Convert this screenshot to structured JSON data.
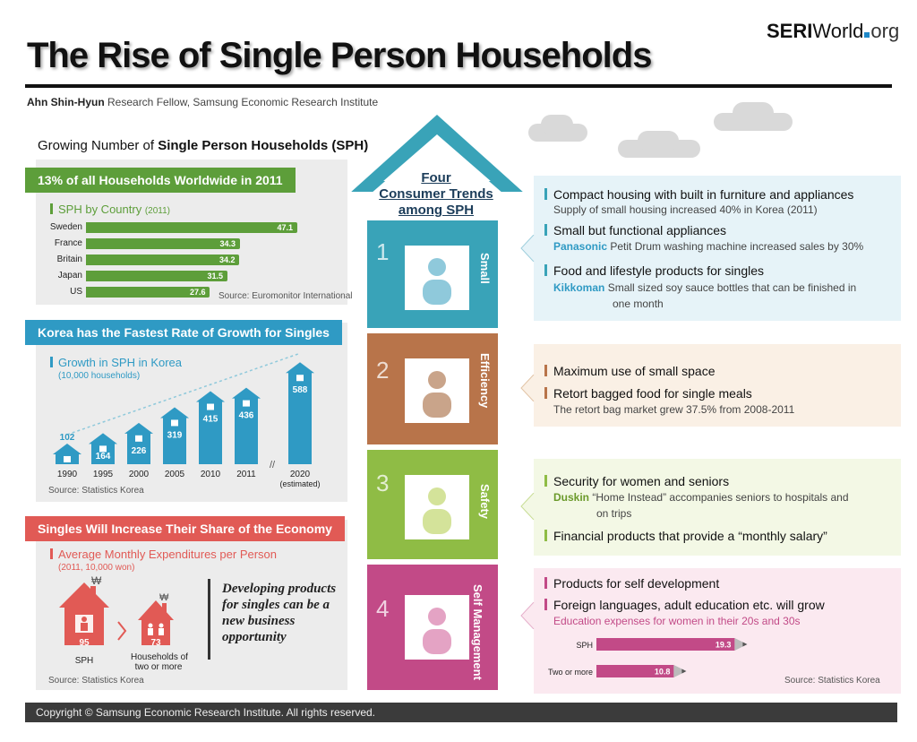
{
  "header": {
    "title": "The Rise of Single Person Households",
    "logo_bold": "SERI",
    "logo_mid": "World",
    "logo_org": "org",
    "author_name": "Ahn Shin-Hyun",
    "author_role": "Research Fellow, Samsung Economic Research Institute"
  },
  "left": {
    "heading_pre": "Growing Number of ",
    "heading_bold": "Single Person Households (SPH)",
    "section1": {
      "ribbon": "13% of all Households Worldwide in 2011",
      "label": "SPH by Country",
      "label_year": "(2011)",
      "source": "Source: Euromonitor International",
      "color": "#5d9e3a"
    },
    "section2": {
      "ribbon": "Korea has the Fastest Rate of Growth for Singles",
      "label": "Growth in SPH in Korea",
      "unit": "(10,000 households)",
      "source": "Source: Statistics Korea",
      "color": "#2f9ac4"
    },
    "section3": {
      "ribbon": "Singles Will Increase Their Share of the Economy",
      "label": "Average Monthly Expenditures per Person",
      "unit": "(2011, 10,000 won)",
      "sph_value": "95",
      "sph_label": "SPH",
      "hh_value": "73",
      "hh_label_1": "Households of",
      "hh_label_2": "two or more",
      "won_symbol": "₩",
      "note": "Developing products for singles can be a new business opportunity",
      "source": "Source: Statistics Korea",
      "color": "#e15a55"
    }
  },
  "chart_data": [
    {
      "type": "bar",
      "orientation": "horizontal",
      "title": "SPH by Country (2011)",
      "categories": [
        "Sweden",
        "France",
        "Britain",
        "Japan",
        "US"
      ],
      "values": [
        47.1,
        34.3,
        34.2,
        31.5,
        27.6
      ],
      "xlim": [
        0,
        50
      ]
    },
    {
      "type": "bar",
      "title": "Growth in SPH in Korea",
      "ylabel": "(10,000 households)",
      "categories": [
        "1990",
        "1995",
        "2000",
        "2005",
        "2010",
        "2011",
        "2020 (estimated)"
      ],
      "category_labels": [
        "1990",
        "1995",
        "2000",
        "2005",
        "2010",
        "2011",
        "2020"
      ],
      "estimated_note": "(estimated)",
      "values": [
        102,
        164,
        226,
        319,
        415,
        436,
        588
      ],
      "ylim": [
        0,
        600
      ]
    },
    {
      "type": "bar",
      "orientation": "horizontal",
      "title": "Education expenses for women in their 20s and 30s",
      "categories": [
        "SPH",
        "Two or more"
      ],
      "values": [
        19.3,
        10.8
      ],
      "xlim": [
        0,
        25
      ]
    }
  ],
  "house": {
    "title_1": "Four",
    "title_2": "Consumer Trends",
    "title_3": "among SPH",
    "segments": [
      {
        "num": "1",
        "label": "Small",
        "color": "#39a3b8"
      },
      {
        "num": "2",
        "label": "Efficiency",
        "color": "#b8744a"
      },
      {
        "num": "3",
        "label": "Safety",
        "color": "#8fbc45"
      },
      {
        "num": "4",
        "label": "Self Management",
        "color": "#c24a87"
      }
    ]
  },
  "right": {
    "small": {
      "item1": "Compact housing with built in furniture and appliances",
      "item1_desc": "Supply of small housing increased 40% in Korea (2011)",
      "item2": "Small but functional appliances",
      "item2_brand": "Panasonic",
      "item2_desc": "Petit Drum washing machine increased sales by 30%",
      "item3": "Food and lifestyle products for singles",
      "item3_brand": "Kikkoman",
      "item3_desc_1": "Small sized soy sauce bottles that can be finished in",
      "item3_desc_2": "one month"
    },
    "efficiency": {
      "item1": "Maximum use of small space",
      "item2": "Retort bagged food for single meals",
      "item2_desc": "The retort bag market grew 37.5% from 2008-2011"
    },
    "safety": {
      "item1": "Security for women and seniors",
      "item1_brand": "Duskin",
      "item1_desc_1": "“Home Instead” accompanies seniors to hospitals and",
      "item1_desc_2": "on trips",
      "item2": "Financial products that provide a “monthly salary”"
    },
    "self": {
      "item1": "Products for self development",
      "item2": "Foreign languages, adult education etc. will grow",
      "item2_desc": "Education expenses for women in their 20s and 30s",
      "source": "Source: Statistics Korea"
    }
  },
  "footer": {
    "text": "Copyright © Samsung Economic Research Institute. All rights reserved."
  }
}
